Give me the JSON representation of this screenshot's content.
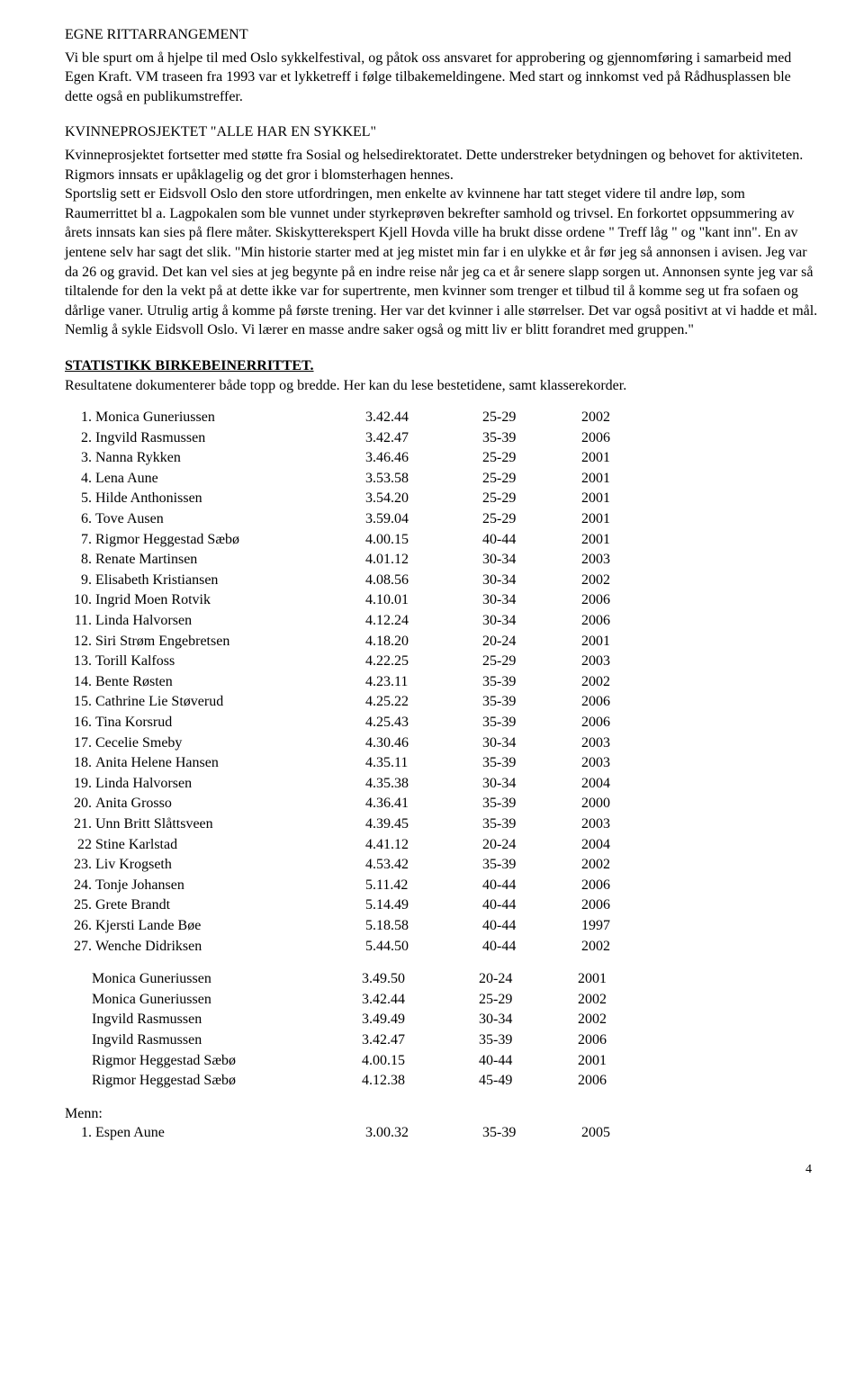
{
  "section1": {
    "title": "EGNE RITTARRANGEMENT",
    "body": "Vi ble spurt om å hjelpe til med Oslo sykkelfestival, og påtok oss ansvaret for approbering og gjennomføring i samarbeid med Egen Kraft.  VM traseen fra 1993 var et lykketreff i følge tilbakemeldingene.  Med start og innkomst ved på Rådhusplassen ble dette også en publikumstreffer."
  },
  "section2": {
    "title": "KVINNEPROSJEKTET \"ALLE HAR EN SYKKEL\"",
    "body": "Kvinneprosjektet fortsetter med støtte fra Sosial og helsedirektoratet.  Dette understreker betydningen og behovet for aktiviteten.  Rigmors innsats er upåklagelig og det gror i blomsterhagen hennes.\nSportslig sett er Eidsvoll Oslo den store utfordringen, men enkelte av kvinnene har tatt steget videre til andre løp, som Raumerrittet bl a.  Lagpokalen som ble vunnet under styrkeprøven bekrefter samhold og trivsel.  En forkortet oppsummering av årets innsats kan sies på flere måter.  Skiskytterekspert Kjell Hovda ville ha brukt disse ordene \" Treff låg \" og \"kant inn\".  En av jentene selv har sagt det slik.  \"Min historie starter med at jeg mistet min far i en ulykke et år før jeg så annonsen i avisen.  Jeg var da 26 og gravid.  Det kan vel sies at jeg begynte på en indre reise når jeg ca et år senere slapp sorgen ut.  Annonsen synte jeg var så tiltalende for den la vekt på at dette ikke var for supertrente, men kvinner som trenger et tilbud til å komme seg ut fra sofaen og dårlige vaner.  Utrulig artig å komme på første trening.  Her var det kvinner i alle størrelser.  Det var også positivt at vi hadde et mål.  Nemlig å sykle Eidsvoll Oslo.  Vi lærer en masse andre saker også og mitt liv er blitt forandret med gruppen.\""
  },
  "stats": {
    "heading": "STATISTIKK BIRKEBEINERRITTET.",
    "sub": "Resultatene dokumenterer både topp og bredde.  Her kan du lese bestetidene, samt klasserekorder."
  },
  "results_main": [
    {
      "rank": " 1.",
      "name": "Monica Guneriussen",
      "time": "3.42.44",
      "age": "25-29",
      "year": "2002"
    },
    {
      "rank": " 2.",
      "name": "Ingvild Rasmussen",
      "time": "3.42.47",
      "age": "35-39",
      "year": "2006"
    },
    {
      "rank": " 3.",
      "name": "Nanna Rykken",
      "time": "3.46.46",
      "age": "25-29",
      "year": "2001"
    },
    {
      "rank": " 4.",
      "name": "Lena Aune",
      "time": "3.53.58",
      "age": "25-29",
      "year": "2001"
    },
    {
      "rank": " 5.",
      "name": "Hilde Anthonissen",
      "time": "3.54.20",
      "age": "25-29",
      "year": "2001"
    },
    {
      "rank": " 6.",
      "name": "Tove Ausen",
      "time": "3.59.04",
      "age": "25-29",
      "year": "2001"
    },
    {
      "rank": " 7.",
      "name": "Rigmor Heggestad Sæbø",
      "time": "4.00.15",
      "age": "40-44",
      "year": "2001"
    },
    {
      "rank": " 8.",
      "name": "Renate Martinsen",
      "time": "4.01.12",
      "age": "30-34",
      "year": "2003"
    },
    {
      "rank": " 9.",
      "name": "Elisabeth Kristiansen",
      "time": "4.08.56",
      "age": "30-34",
      "year": "2002"
    },
    {
      "rank": "10.",
      "name": "Ingrid Moen Rotvik",
      "time": "4.10.01",
      "age": "30-34",
      "year": "2006"
    },
    {
      "rank": "11.",
      "name": "Linda Halvorsen",
      "time": "4.12.24",
      "age": "30-34",
      "year": "2006"
    },
    {
      "rank": "12.",
      "name": "Siri Strøm Engebretsen",
      "time": "4.18.20",
      "age": "20-24",
      "year": "2001"
    },
    {
      "rank": "13.",
      "name": "Torill Kalfoss",
      "time": "4.22.25",
      "age": "25-29",
      "year": "2003"
    },
    {
      "rank": "14.",
      "name": "Bente Røsten",
      "time": "4.23.11",
      "age": "35-39",
      "year": "2002"
    },
    {
      "rank": "15.",
      "name": "Cathrine Lie Støverud",
      "time": "4.25.22",
      "age": "35-39",
      "year": "2006"
    },
    {
      "rank": "16.",
      "name": "Tina Korsrud",
      "time": "4.25.43",
      "age": "35-39",
      "year": "2006"
    },
    {
      "rank": "17.",
      "name": "Cecelie Smeby",
      "time": "4.30.46",
      "age": "30-34",
      "year": "2003"
    },
    {
      "rank": "18.",
      "name": "Anita Helene Hansen",
      "time": "4.35.11",
      "age": "35-39",
      "year": "2003"
    },
    {
      "rank": "19.",
      "name": "Linda Halvorsen",
      "time": "4.35.38",
      "age": "30-34",
      "year": "2004"
    },
    {
      "rank": "20.",
      "name": "Anita Grosso",
      "time": "4.36.41",
      "age": "35-39",
      "year": "2000"
    },
    {
      "rank": "21.",
      "name": "Unn Britt Slåttsveen",
      "time": "4.39.45",
      "age": "35-39",
      "year": "2003"
    },
    {
      "rank": "22",
      "name": "Stine Karlstad",
      "time": "4.41.12",
      "age": "20-24",
      "year": "2004"
    },
    {
      "rank": "23.",
      "name": "Liv Krogseth",
      "time": "4.53.42",
      "age": "35-39",
      "year": "2002"
    },
    {
      "rank": "24.",
      "name": "Tonje Johansen",
      "time": "5.11.42",
      "age": "40-44",
      "year": "2006"
    },
    {
      "rank": "25.",
      "name": "Grete Brandt",
      "time": "5.14.49",
      "age": "40-44",
      "year": "2006"
    },
    {
      "rank": "26.",
      "name": "Kjersti Lande Bøe",
      "time": "5.18.58",
      "age": "40-44",
      "year": "1997"
    },
    {
      "rank": "27.",
      "name": "Wenche Didriksen",
      "time": "5.44.50",
      "age": "40-44",
      "year": "2002"
    }
  ],
  "results_records": [
    {
      "name": "Monica Guneriussen",
      "time": "3.49.50",
      "age": "20-24",
      "year": "2001"
    },
    {
      "name": "Monica Guneriussen",
      "time": "3.42.44",
      "age": "25-29",
      "year": "2002"
    },
    {
      "name": "Ingvild Rasmussen",
      "time": "3.49.49",
      "age": "30-34",
      "year": "2002"
    },
    {
      "name": "Ingvild Rasmussen",
      "time": "3.42.47",
      "age": "35-39",
      "year": "2006"
    },
    {
      "name": "Rigmor Heggestad Sæbø",
      "time": "4.00.15",
      "age": "40-44",
      "year": "2001"
    },
    {
      "name": "Rigmor Heggestad Sæbø",
      "time": "4.12.38",
      "age": "45-49",
      "year": "2006"
    }
  ],
  "menn": {
    "label": "Menn:",
    "rows": [
      {
        "rank": " 1.",
        "name": "Espen Aune",
        "time": "3.00.32",
        "age": "35-39",
        "year": "2005"
      }
    ]
  },
  "page_number": "4"
}
